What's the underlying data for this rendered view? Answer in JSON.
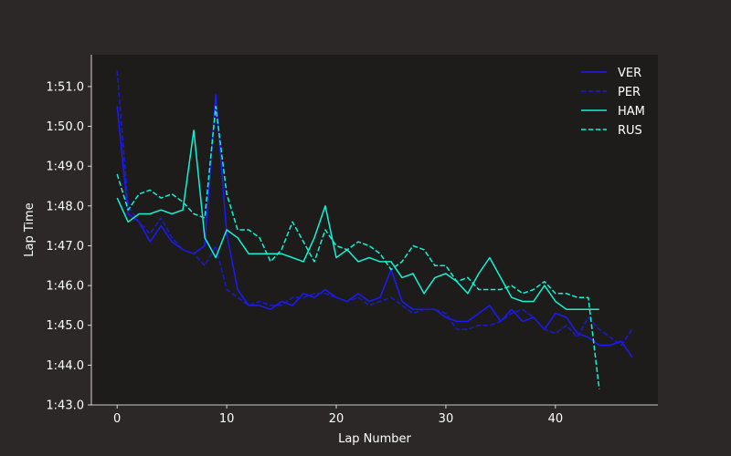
{
  "chart_data": {
    "type": "line",
    "xlabel": "Lap Number",
    "ylabel": "Lap Time",
    "xlim": [
      -2.35,
      49.35
    ],
    "ylim_seconds": [
      103.0,
      111.8
    ],
    "x_ticks": [
      0,
      10,
      20,
      30,
      40
    ],
    "y_ticks": [
      {
        "value": 103,
        "label": "1:43.0"
      },
      {
        "value": 104,
        "label": "1:44.0"
      },
      {
        "value": 105,
        "label": "1:45.0"
      },
      {
        "value": 106,
        "label": "1:46.0"
      },
      {
        "value": 107,
        "label": "1:47.0"
      },
      {
        "value": 108,
        "label": "1:48.0"
      },
      {
        "value": 109,
        "label": "1:49.0"
      },
      {
        "value": 110,
        "label": "1:50.0"
      },
      {
        "value": 111,
        "label": "1:51.0"
      }
    ],
    "grid": false,
    "legend_position": "top-right",
    "colors": {
      "page_bg": "#2b2827",
      "plot_bg": "#1e1c1b",
      "axis": "#ffffff"
    },
    "series": [
      {
        "name": "VER",
        "color": "#1a1aff",
        "dash": "solid",
        "x": [
          0,
          1,
          2,
          3,
          4,
          5,
          6,
          7,
          8,
          9,
          10,
          11,
          12,
          13,
          14,
          15,
          16,
          17,
          18,
          19,
          20,
          21,
          22,
          23,
          24,
          25,
          26,
          27,
          28,
          29,
          30,
          31,
          32,
          33,
          34,
          35,
          36,
          37,
          38,
          39,
          40,
          41,
          42,
          43,
          44,
          45,
          46,
          47
        ],
        "values": [
          110.5,
          107.8,
          107.6,
          107.1,
          107.5,
          107.1,
          106.9,
          106.8,
          107.0,
          110.8,
          107.3,
          105.9,
          105.5,
          105.5,
          105.4,
          105.6,
          105.5,
          105.8,
          105.7,
          105.9,
          105.7,
          105.6,
          105.8,
          105.6,
          105.7,
          106.4,
          105.6,
          105.4,
          105.4,
          105.4,
          105.2,
          105.1,
          105.1,
          105.3,
          105.5,
          105.1,
          105.4,
          105.1,
          105.2,
          104.9,
          105.3,
          105.2,
          104.8,
          104.7,
          104.5,
          104.5,
          104.6,
          104.2
        ]
      },
      {
        "name": "PER",
        "color": "#1a1ad0",
        "dash": "dashed",
        "x": [
          0,
          1,
          2,
          3,
          4,
          5,
          6,
          7,
          8,
          9,
          10,
          11,
          12,
          13,
          14,
          15,
          16,
          17,
          18,
          19,
          20,
          21,
          22,
          23,
          24,
          25,
          26,
          27,
          28,
          29,
          30,
          31,
          32,
          33,
          34,
          35,
          36,
          37,
          38,
          39,
          40,
          41,
          42,
          43,
          44,
          45,
          46,
          47
        ],
        "values": [
          111.4,
          108.0,
          107.6,
          107.3,
          107.7,
          107.2,
          106.9,
          106.8,
          106.5,
          107.0,
          105.9,
          105.7,
          105.5,
          105.6,
          105.5,
          105.5,
          105.7,
          105.7,
          105.8,
          105.8,
          105.7,
          105.6,
          105.7,
          105.5,
          105.6,
          105.7,
          105.5,
          105.3,
          105.4,
          105.4,
          105.3,
          104.9,
          104.9,
          105.0,
          105.0,
          105.1,
          105.3,
          105.4,
          105.2,
          104.9,
          104.8,
          105.0,
          104.7,
          105.2,
          104.9,
          104.7,
          104.5,
          104.9
        ]
      },
      {
        "name": "HAM",
        "color": "#13f2d2",
        "dash": "solid",
        "x": [
          0,
          1,
          2,
          3,
          4,
          5,
          6,
          7,
          8,
          9,
          10,
          11,
          12,
          13,
          14,
          15,
          16,
          17,
          18,
          19,
          20,
          21,
          22,
          23,
          24,
          25,
          26,
          27,
          28,
          29,
          30,
          31,
          32,
          33,
          34,
          35,
          36,
          37,
          38,
          39,
          40,
          41,
          42,
          43,
          44
        ],
        "values": [
          108.2,
          107.6,
          107.8,
          107.8,
          107.9,
          107.8,
          107.9,
          109.9,
          107.2,
          106.7,
          107.4,
          107.2,
          106.8,
          106.8,
          106.8,
          106.8,
          106.7,
          106.6,
          107.2,
          108.0,
          106.7,
          106.9,
          106.6,
          106.7,
          106.6,
          106.6,
          106.2,
          106.3,
          105.8,
          106.2,
          106.3,
          106.1,
          105.8,
          106.3,
          106.7,
          106.2,
          105.7,
          105.6,
          105.6,
          106.0,
          105.6,
          105.4,
          105.4,
          105.4,
          105.4
        ]
      },
      {
        "name": "RUS",
        "color": "#13f2d2",
        "dash": "dashed",
        "x": [
          0,
          1,
          2,
          3,
          4,
          5,
          6,
          7,
          8,
          9,
          10,
          11,
          12,
          13,
          14,
          15,
          16,
          17,
          18,
          19,
          20,
          21,
          22,
          23,
          24,
          25,
          26,
          27,
          28,
          29,
          30,
          31,
          32,
          33,
          34,
          35,
          36,
          37,
          38,
          39,
          40,
          41,
          42,
          43,
          44
        ],
        "values": [
          108.8,
          107.9,
          108.3,
          108.4,
          108.2,
          108.3,
          108.1,
          107.8,
          107.7,
          110.5,
          108.3,
          107.4,
          107.4,
          107.2,
          106.6,
          106.9,
          107.6,
          107.1,
          106.6,
          107.4,
          107.0,
          106.9,
          107.1,
          107.0,
          106.8,
          106.4,
          106.6,
          107.0,
          106.9,
          106.5,
          106.5,
          106.1,
          106.2,
          105.9,
          105.9,
          105.9,
          106.0,
          105.8,
          105.9,
          106.1,
          105.8,
          105.8,
          105.7,
          105.7,
          103.4
        ]
      }
    ]
  }
}
